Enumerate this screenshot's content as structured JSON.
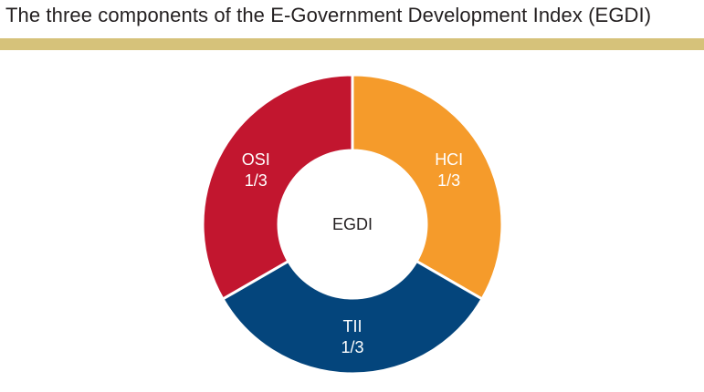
{
  "chart_data": {
    "type": "pie",
    "title": "The three components of the E-Government Development Index (EGDI)",
    "center_label": "EGDI",
    "slices": [
      {
        "label": "HCI",
        "value_label": "1/3",
        "value": 0.3333,
        "color": "#f59b2b"
      },
      {
        "label": "TII",
        "value_label": "1/3",
        "value": 0.3333,
        "color": "#04457c"
      },
      {
        "label": "OSI",
        "value_label": "1/3",
        "value": 0.3333,
        "color": "#c2162f"
      }
    ]
  },
  "colors": {
    "title_rule": "#d6c27a",
    "title_text": "#231f20"
  }
}
